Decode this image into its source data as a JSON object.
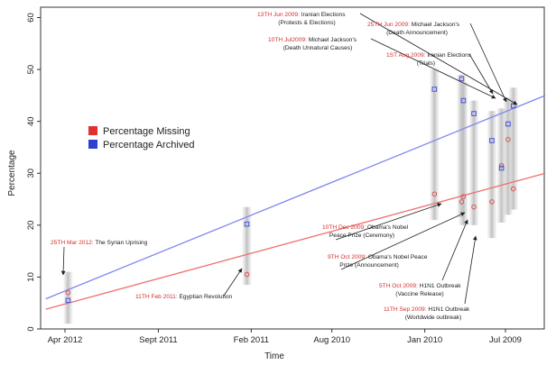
{
  "chart_data": {
    "type": "scatter",
    "xlabel": "Time",
    "ylabel": "Percentage",
    "x_ticks": [
      "Apr 2012",
      "Sept 2011",
      "Feb 2011",
      "Aug 2010",
      "Jan 2010",
      "Jul 2009"
    ],
    "y_ticks": [
      0,
      10,
      20,
      30,
      40,
      50,
      60
    ],
    "ylim": [
      0,
      62
    ],
    "x_reversed": true,
    "x_note": "time runs right-to-left (newest on the left)",
    "legend": {
      "placement": "left",
      "entries": [
        {
          "label": "Percentage Missing",
          "color": "#e03030"
        },
        {
          "label": "Percentage Archived",
          "color": "#2f3fd0"
        }
      ]
    },
    "series": [
      {
        "name": "Percentage Missing",
        "color": "#e05050",
        "marker": "circle",
        "points": [
          {
            "date": "2012-03-25",
            "y": 7
          },
          {
            "date": "2011-02-11",
            "y": 10.5
          },
          {
            "date": "2009-12-10",
            "y": 26
          },
          {
            "date": "2009-10-09",
            "y": 24.5
          },
          {
            "date": "2009-10-05",
            "y": 25.5
          },
          {
            "date": "2009-09-11",
            "y": 23.5
          },
          {
            "date": "2009-08-01",
            "y": 24.5
          },
          {
            "date": "2009-07-10",
            "y": 31.5
          },
          {
            "date": "2009-06-25",
            "y": 36.5
          },
          {
            "date": "2009-06-13",
            "y": 27
          }
        ],
        "trend": [
          {
            "date": "2012-05-15",
            "y": 3.8
          },
          {
            "date": "2009-04-01",
            "y": 30
          }
        ]
      },
      {
        "name": "Percentage Archived",
        "color": "#4050e0",
        "marker": "square",
        "points": [
          {
            "date": "2012-03-25",
            "y": 5.5
          },
          {
            "date": "2011-02-11",
            "y": 20.2
          },
          {
            "date": "2009-12-10",
            "y": 46.2
          },
          {
            "date": "2009-10-09",
            "y": 48.2
          },
          {
            "date": "2009-10-05",
            "y": 44
          },
          {
            "date": "2009-09-11",
            "y": 41.5
          },
          {
            "date": "2009-08-01",
            "y": 36.3
          },
          {
            "date": "2009-07-10",
            "y": 31
          },
          {
            "date": "2009-06-25",
            "y": 39.5
          },
          {
            "date": "2009-06-13",
            "y": 43
          }
        ],
        "trend": [
          {
            "date": "2012-05-15",
            "y": 5.8
          },
          {
            "date": "2009-04-01",
            "y": 45
          }
        ]
      }
    ],
    "ranges": [
      {
        "date": "2012-03-25",
        "low": 1,
        "high": 11
      },
      {
        "date": "2011-02-11",
        "low": 8.5,
        "high": 23.5
      },
      {
        "date": "2009-12-10",
        "low": 21,
        "high": 50
      },
      {
        "date": "2009-10-09",
        "low": 21.5,
        "high": 49
      },
      {
        "date": "2009-10-05",
        "low": 20,
        "high": 47.5
      },
      {
        "date": "2009-09-11",
        "low": 20,
        "high": 44
      },
      {
        "date": "2009-08-01",
        "low": 17.5,
        "high": 42
      },
      {
        "date": "2009-07-10",
        "low": 20.5,
        "high": 42.5
      },
      {
        "date": "2009-06-25",
        "low": 22,
        "high": 44.5
      },
      {
        "date": "2009-06-13",
        "low": 23,
        "high": 46.5
      }
    ],
    "annotations": [
      {
        "date_label": "25TH Mar 2012:",
        "text": "The Syrian Uprising"
      },
      {
        "date_label": "11TH Feb 2011:",
        "text": "Egyptian Revolution"
      },
      {
        "date_label": "13TH Jun 2009:",
        "text": "Iranian Elections",
        "text2": "(Protests & Elections)"
      },
      {
        "date_label": "25TH Jun 2009:",
        "text": "Michael Jackson's",
        "text2": "(Death Announcement)"
      },
      {
        "date_label": "10TH Jul2009:",
        "text": "Michael Jackson's",
        "text2": "(Death Unnatural Causes)"
      },
      {
        "date_label": "1ST Aug 2009:",
        "text": "Iranian Elections",
        "text2": "(Trials)"
      },
      {
        "date_label": "10TH Dec 2009:",
        "text": "Obama's Nobel",
        "text2": "Peace Prize (Ceremony)"
      },
      {
        "date_label": "9TH Oct 2009:",
        "text": "Obama's Nobel Peace",
        "text2": "Prize (Announcement)"
      },
      {
        "date_label": "5TH Oct 2009:",
        "text": "H1N1 Outbreak",
        "text2": "(Vaccine Release)"
      },
      {
        "date_label": "11TH Sep 2009:",
        "text": "H1N1 Outbreak",
        "text2": "(Worldwide outbreak)"
      }
    ]
  }
}
